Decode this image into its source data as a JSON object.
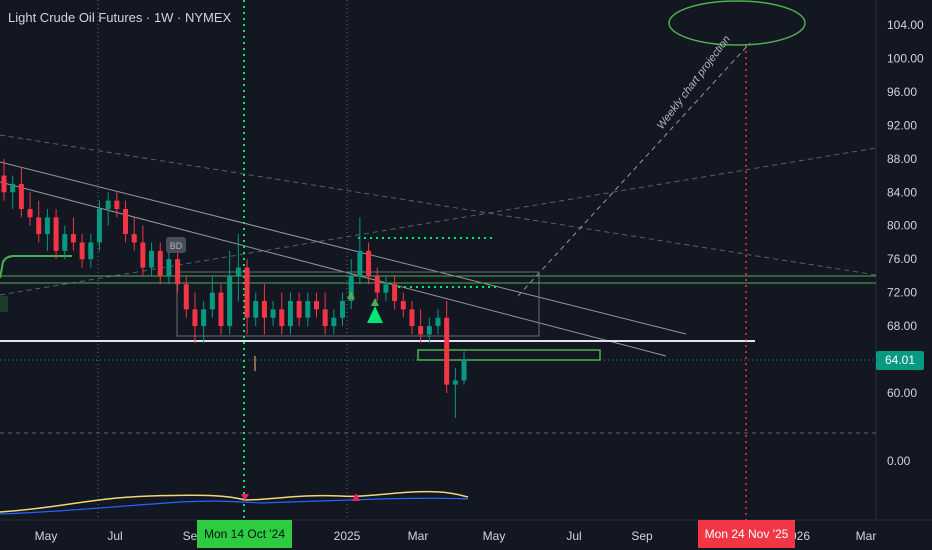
{
  "header": {
    "title": "Light Crude Oil Futures · 1W · NYMEX"
  },
  "colors": {
    "background": "#131722",
    "up": "#089981",
    "down": "#f23645",
    "green_line": "#4caf50",
    "dotted_green": "#00e676",
    "red_line": "#f23645"
  },
  "last_price_label": "64.01",
  "date_markers": {
    "green": "Mon 14 Oct '24",
    "red": "Mon 24 Nov '25"
  },
  "annotations": {
    "projection_label": "Weekly chart projection",
    "badge": "BD"
  },
  "chart_data": {
    "type": "candlestick",
    "title": "Light Crude Oil Futures · 1W · NYMEX",
    "y_axis": {
      "ticks": [
        "104.00",
        "100.00",
        "96.00",
        "92.00",
        "88.00",
        "84.00",
        "80.00",
        "76.00",
        "72.00",
        "68.00",
        "60.00"
      ],
      "range": [
        54,
        106
      ]
    },
    "x_axis": {
      "ticks": [
        "May",
        "Jul",
        "Se",
        "2025",
        "Mar",
        "May",
        "Jul",
        "Sep",
        "026",
        "Mar"
      ]
    },
    "oscillator": {
      "ticks": [
        "0.00"
      ]
    },
    "candles": [
      {
        "o": 86,
        "h": 88,
        "l": 83,
        "c": 84
      },
      {
        "o": 84,
        "h": 86,
        "l": 82,
        "c": 85
      },
      {
        "o": 85,
        "h": 87,
        "l": 81,
        "c": 82
      },
      {
        "o": 82,
        "h": 84,
        "l": 80,
        "c": 81
      },
      {
        "o": 81,
        "h": 83,
        "l": 78,
        "c": 79
      },
      {
        "o": 79,
        "h": 82,
        "l": 77,
        "c": 81
      },
      {
        "o": 81,
        "h": 82,
        "l": 76,
        "c": 77
      },
      {
        "o": 77,
        "h": 80,
        "l": 76,
        "c": 79
      },
      {
        "o": 79,
        "h": 81,
        "l": 77,
        "c": 78
      },
      {
        "o": 78,
        "h": 79,
        "l": 75,
        "c": 76
      },
      {
        "o": 76,
        "h": 79,
        "l": 75,
        "c": 78
      },
      {
        "o": 78,
        "h": 83,
        "l": 77,
        "c": 82
      },
      {
        "o": 82,
        "h": 84,
        "l": 80,
        "c": 83
      },
      {
        "o": 83,
        "h": 84,
        "l": 81,
        "c": 82
      },
      {
        "o": 82,
        "h": 83,
        "l": 78,
        "c": 79
      },
      {
        "o": 79,
        "h": 81,
        "l": 77,
        "c": 78
      },
      {
        "o": 78,
        "h": 80,
        "l": 74,
        "c": 75
      },
      {
        "o": 75,
        "h": 78,
        "l": 74,
        "c": 77
      },
      {
        "o": 77,
        "h": 78,
        "l": 73,
        "c": 74
      },
      {
        "o": 74,
        "h": 78,
        "l": 73,
        "c": 76
      },
      {
        "o": 76,
        "h": 77,
        "l": 72,
        "c": 73
      },
      {
        "o": 73,
        "h": 74,
        "l": 69,
        "c": 70
      },
      {
        "o": 70,
        "h": 72,
        "l": 66,
        "c": 68
      },
      {
        "o": 68,
        "h": 71,
        "l": 66,
        "c": 70
      },
      {
        "o": 70,
        "h": 74,
        "l": 69,
        "c": 72
      },
      {
        "o": 72,
        "h": 73,
        "l": 67,
        "c": 68
      },
      {
        "o": 68,
        "h": 77,
        "l": 67,
        "c": 74
      },
      {
        "o": 74,
        "h": 79,
        "l": 71,
        "c": 75
      },
      {
        "o": 75,
        "h": 76,
        "l": 67,
        "c": 69
      },
      {
        "o": 69,
        "h": 72,
        "l": 68,
        "c": 71
      },
      {
        "o": 71,
        "h": 73,
        "l": 67,
        "c": 69
      },
      {
        "o": 69,
        "h": 71,
        "l": 68,
        "c": 70
      },
      {
        "o": 70,
        "h": 72,
        "l": 67,
        "c": 68
      },
      {
        "o": 68,
        "h": 72,
        "l": 67,
        "c": 71
      },
      {
        "o": 71,
        "h": 72,
        "l": 68,
        "c": 69
      },
      {
        "o": 69,
        "h": 72,
        "l": 68,
        "c": 71
      },
      {
        "o": 71,
        "h": 72,
        "l": 69,
        "c": 70
      },
      {
        "o": 70,
        "h": 72,
        "l": 67,
        "c": 68
      },
      {
        "o": 68,
        "h": 70,
        "l": 67,
        "c": 69
      },
      {
        "o": 69,
        "h": 72,
        "l": 68,
        "c": 71
      },
      {
        "o": 71,
        "h": 76,
        "l": 70,
        "c": 74
      },
      {
        "o": 74,
        "h": 81,
        "l": 73,
        "c": 77
      },
      {
        "o": 77,
        "h": 78,
        "l": 73,
        "c": 74
      },
      {
        "o": 74,
        "h": 75,
        "l": 71,
        "c": 72
      },
      {
        "o": 72,
        "h": 74,
        "l": 71,
        "c": 73
      },
      {
        "o": 73,
        "h": 74,
        "l": 70,
        "c": 71
      },
      {
        "o": 71,
        "h": 72,
        "l": 69,
        "c": 70
      },
      {
        "o": 70,
        "h": 71,
        "l": 67,
        "c": 68
      },
      {
        "o": 68,
        "h": 70,
        "l": 66,
        "c": 67
      },
      {
        "o": 67,
        "h": 69,
        "l": 66,
        "c": 68
      },
      {
        "o": 68,
        "h": 70,
        "l": 67,
        "c": 69
      },
      {
        "o": 69,
        "h": 71,
        "l": 60,
        "c": 61
      },
      {
        "o": 61,
        "h": 63,
        "l": 57,
        "c": 61.5
      },
      {
        "o": 61.5,
        "h": 65,
        "l": 61,
        "c": 64
      }
    ],
    "levels": {
      "white_support": 66.5,
      "green_band": [
        72.3,
        74
      ],
      "last_price": 64.01
    },
    "grid": true
  }
}
